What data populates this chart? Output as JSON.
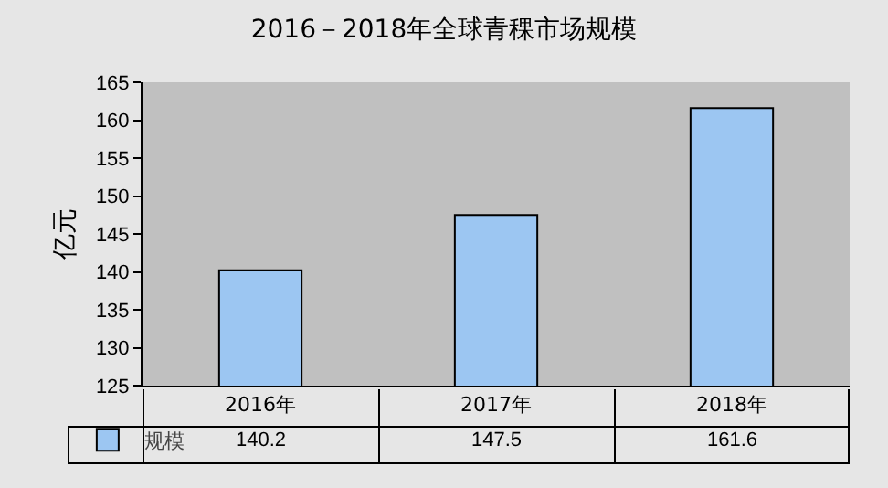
{
  "chart_data": {
    "type": "bar",
    "title": "2016－2018年全球青稞市场规模",
    "ylabel": "亿元",
    "categories": [
      "2016年",
      "2017年",
      "2018年"
    ],
    "series": [
      {
        "name": "规模",
        "color": "#9cc6f2",
        "values": [
          140.2,
          147.5,
          161.6
        ]
      }
    ],
    "ylim": [
      125,
      165
    ],
    "yticks": [
      125,
      130,
      135,
      140,
      145,
      150,
      155,
      160,
      165
    ],
    "grid": false,
    "legend": "bottom left",
    "data_labels": true
  }
}
